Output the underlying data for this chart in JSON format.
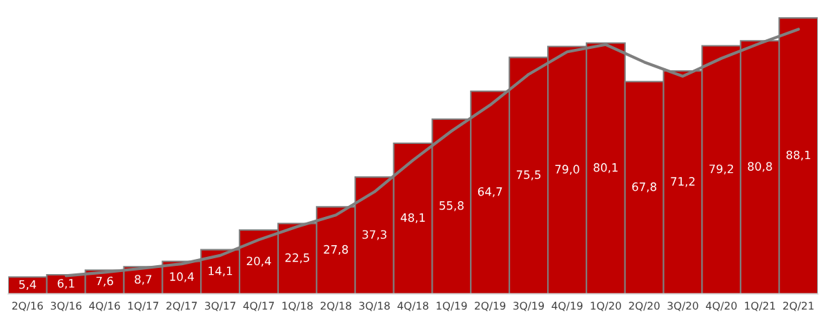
{
  "chart_data": {
    "type": "bar",
    "categories": [
      "2Q/16",
      "3Q/16",
      "4Q/16",
      "1Q/17",
      "2Q/17",
      "3Q/17",
      "4Q/17",
      "1Q/18",
      "2Q/18",
      "3Q/18",
      "4Q/18",
      "1Q/19",
      "2Q/19",
      "3Q/19",
      "4Q/19",
      "1Q/20",
      "2Q/20",
      "3Q/20",
      "4Q/20",
      "1Q/21",
      "2Q/21"
    ],
    "series": [
      {
        "color": "#c00000",
        "values": [
          5.4,
          6.1,
          7.6,
          8.7,
          10.4,
          14.1,
          20.4,
          22.5,
          27.8,
          37.3,
          48.1,
          55.8,
          64.7,
          75.5,
          79.0,
          80.1,
          67.8,
          71.2,
          79.2,
          80.8,
          88.1
        ],
        "value_labels": [
          "5,4",
          "6,1",
          "7,6",
          "8,7",
          "10,4",
          "14,1",
          "20,4",
          "22,5",
          "27,8",
          "37,3",
          "48,1",
          "55,8",
          "64,7",
          "75,5",
          "79,0",
          "80,1",
          "67,8",
          "71,2",
          "79,2",
          "80,8",
          "88,1"
        ]
      },
      {
        "type": "line",
        "color": "#7f7f7f",
        "values": [
          null,
          5.8,
          6.9,
          8.2,
          9.6,
          12.3,
          17.3,
          21.5,
          25.2,
          32.6,
          42.7,
          52.0,
          60.3,
          70.1,
          77.3,
          79.6,
          74.0,
          69.5,
          75.2,
          80.0,
          84.5
        ]
      }
    ],
    "tick_labels": "x",
    "grid": false,
    "legend": false
  }
}
